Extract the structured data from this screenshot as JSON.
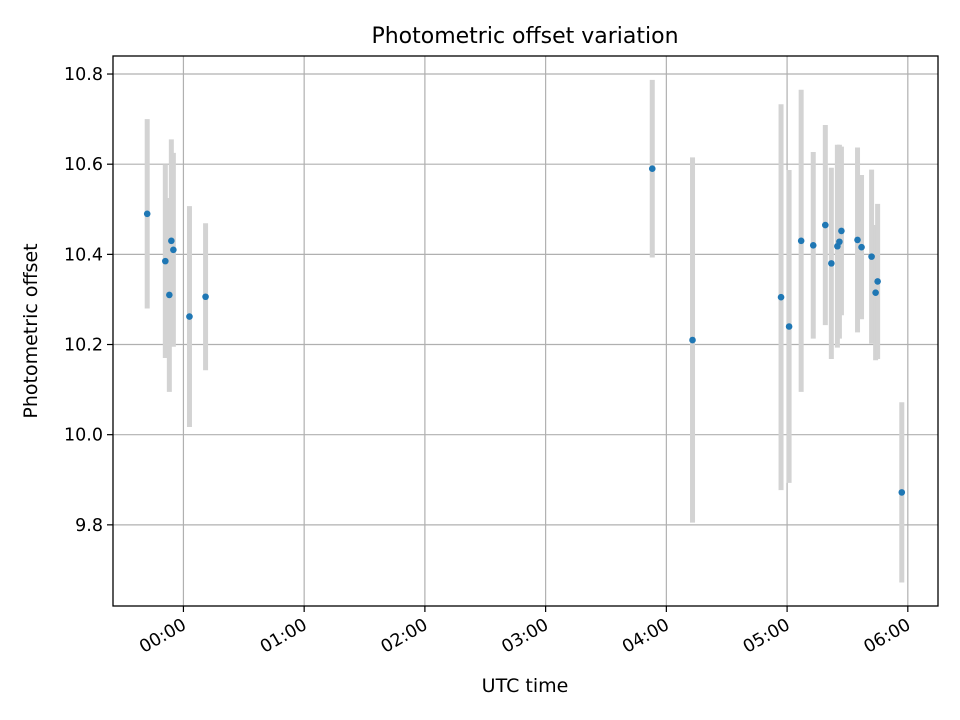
{
  "chart_data": {
    "type": "scatter",
    "title": "Photometric offset variation",
    "xlabel": "UTC time",
    "ylabel": "Photometric offset",
    "x_unit": "hours UTC",
    "xlim": [
      "23:25",
      "06:15"
    ],
    "ylim": [
      9.62,
      10.84
    ],
    "x_ticks": [
      "00:00",
      "01:00",
      "02:00",
      "03:00",
      "04:00",
      "05:00",
      "06:00"
    ],
    "y_ticks": [
      "9.8",
      "10.0",
      "10.2",
      "10.4",
      "10.6",
      "10.8"
    ],
    "grid": true,
    "point_color": "#1f77b4",
    "errorbar_color": "#d3d3d3",
    "points": [
      {
        "x": "23:42",
        "y": 10.49,
        "err": 0.21
      },
      {
        "x": "23:51",
        "y": 10.385,
        "err": 0.215
      },
      {
        "x": "23:53",
        "y": 10.31,
        "err": 0.215
      },
      {
        "x": "23:54",
        "y": 10.43,
        "err": 0.225
      },
      {
        "x": "23:55",
        "y": 10.41,
        "err": 0.215
      },
      {
        "x": "00:03",
        "y": 10.262,
        "err": 0.245
      },
      {
        "x": "00:11",
        "y": 10.306,
        "err": 0.163
      },
      {
        "x": "03:53",
        "y": 10.59,
        "err": 0.197
      },
      {
        "x": "04:13",
        "y": 10.21,
        "err": 0.405
      },
      {
        "x": "04:57",
        "y": 10.305,
        "err": 0.428
      },
      {
        "x": "05:01",
        "y": 10.24,
        "err": 0.347
      },
      {
        "x": "05:07",
        "y": 10.43,
        "err": 0.335
      },
      {
        "x": "05:13",
        "y": 10.42,
        "err": 0.207
      },
      {
        "x": "05:19",
        "y": 10.465,
        "err": 0.222
      },
      {
        "x": "05:22",
        "y": 10.38,
        "err": 0.212
      },
      {
        "x": "05:25",
        "y": 10.418,
        "err": 0.225
      },
      {
        "x": "05:26",
        "y": 10.428,
        "err": 0.215
      },
      {
        "x": "05:27",
        "y": 10.452,
        "err": 0.187
      },
      {
        "x": "05:35",
        "y": 10.432,
        "err": 0.205
      },
      {
        "x": "05:37",
        "y": 10.416,
        "err": 0.16
      },
      {
        "x": "05:42",
        "y": 10.395,
        "err": 0.193
      },
      {
        "x": "05:44",
        "y": 10.315,
        "err": 0.15
      },
      {
        "x": "05:45",
        "y": 10.34,
        "err": 0.172
      },
      {
        "x": "05:57",
        "y": 9.872,
        "err": 0.2
      }
    ]
  }
}
